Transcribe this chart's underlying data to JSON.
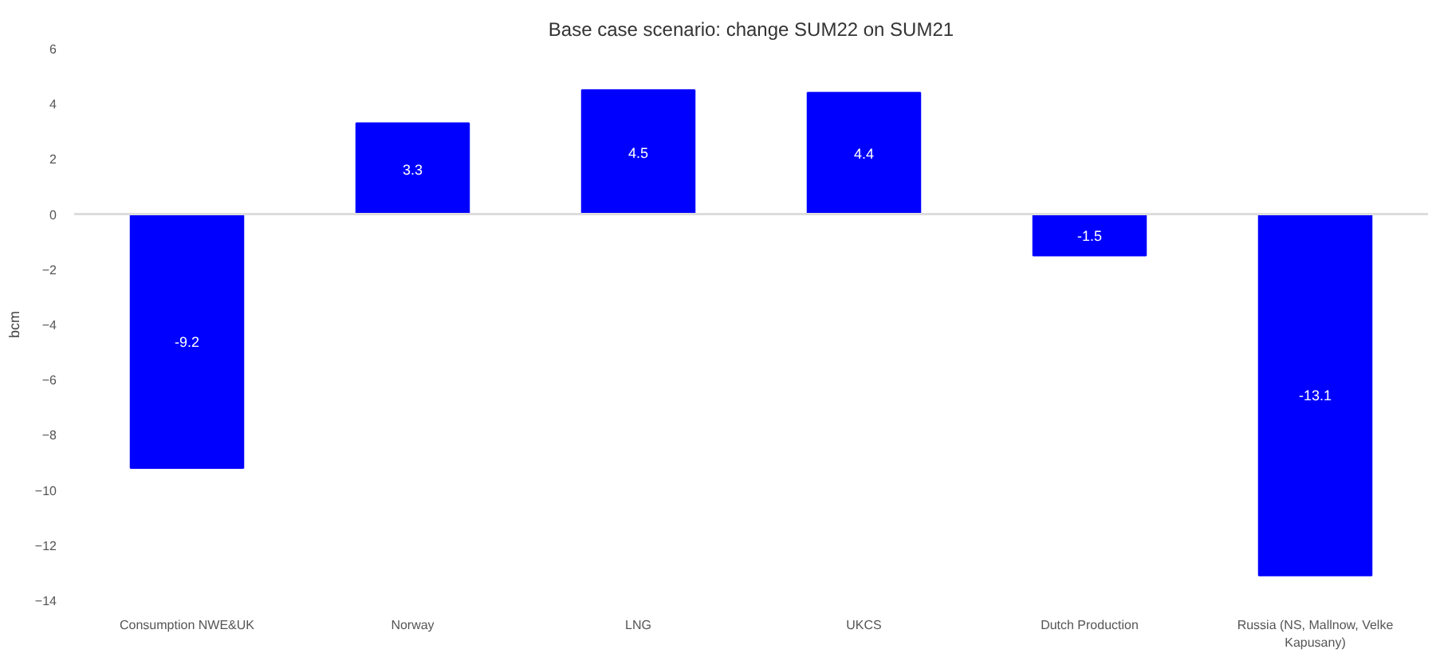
{
  "chart_data": {
    "type": "bar",
    "title": "Base case scenario: change SUM22 on SUM21",
    "ylabel": "bcm",
    "categories": [
      "Consumption NWE&UK",
      "Norway",
      "LNG",
      "UKCS",
      "Dutch Production",
      "Russia (NS, Mallnow, Velke Kapusany)"
    ],
    "values": [
      -9.2,
      3.3,
      4.5,
      4.4,
      -1.5,
      -13.1
    ],
    "color": "#0000ff",
    "data_labels": true,
    "ylim": [
      -14,
      6
    ],
    "yticks": [
      -14,
      -12,
      -10,
      -8,
      -6,
      -4,
      -2,
      0,
      2,
      4,
      6
    ],
    "ref_lines": [
      {
        "axis": "y",
        "value": 0,
        "color": "#dddddd"
      }
    ],
    "grid": false
  }
}
